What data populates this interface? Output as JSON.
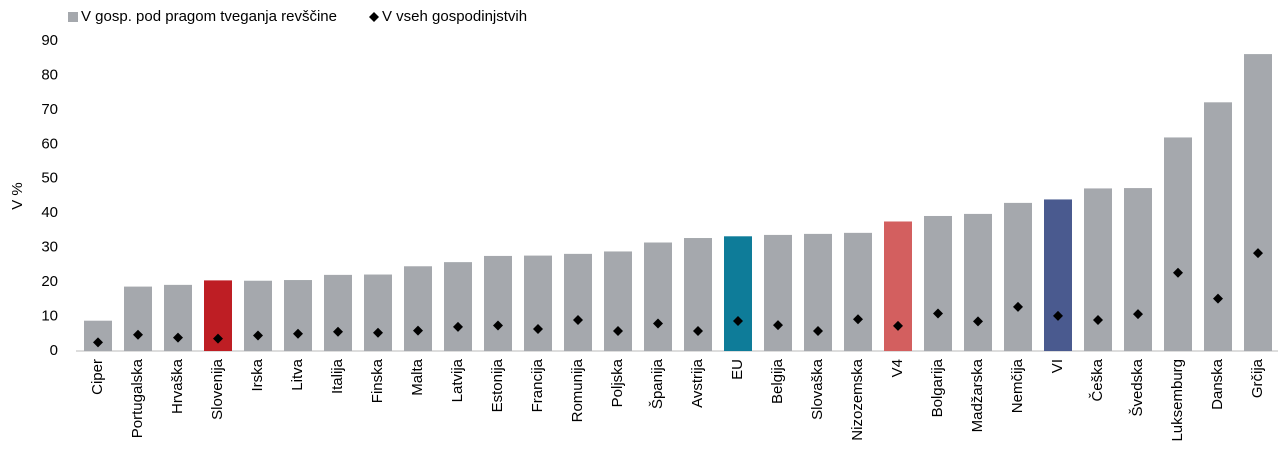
{
  "chart_data": {
    "type": "bar",
    "ylabel": "V %",
    "categories": [
      "Ciper",
      "Portugalska",
      "Hrvaška",
      "Slovenija",
      "Irska",
      "Litva",
      "Italija",
      "Finska",
      "Malta",
      "Latvija",
      "Estonija",
      "Francija",
      "Romunija",
      "Poljska",
      "Španija",
      "Avstrija",
      "EU",
      "Belgija",
      "Slovaška",
      "Nizozemska",
      "V4",
      "Bolgarija",
      "Madžarska",
      "Nemčija",
      "VI",
      "Češka",
      "Švedska",
      "Luksemburg",
      "Danska",
      "Grčija"
    ],
    "series": [
      {
        "name": "V gosp. pod pragom tveganja revščine",
        "color": "#a5a8ad",
        "colors": [
          "#a5a8ad",
          "#a5a8ad",
          "#a5a8ad",
          "#be1e24",
          "#a5a8ad",
          "#a5a8ad",
          "#a5a8ad",
          "#a5a8ad",
          "#a5a8ad",
          "#a5a8ad",
          "#a5a8ad",
          "#a5a8ad",
          "#a5a8ad",
          "#a5a8ad",
          "#a5a8ad",
          "#a5a8ad",
          "#0e7c99",
          "#a5a8ad",
          "#a5a8ad",
          "#a5a8ad",
          "#d35f5f",
          "#a5a8ad",
          "#a5a8ad",
          "#a5a8ad",
          "#4a5a8f",
          "#a5a8ad",
          "#a5a8ad",
          "#a5a8ad",
          "#a5a8ad",
          "#a5a8ad"
        ],
        "values": [
          8.8,
          18.7,
          19.2,
          20.5,
          20.4,
          20.6,
          22.1,
          22.2,
          24.6,
          25.8,
          27.6,
          27.7,
          28.2,
          28.9,
          31.5,
          32.8,
          33.3,
          33.7,
          34.0,
          34.3,
          37.6,
          39.2,
          39.8,
          43.0,
          44.0,
          47.2,
          47.3,
          62.0,
          72.2,
          86.2
        ]
      },
      {
        "name": "V vseh gospodinjstvih",
        "color": "#000000",
        "marker": "diamond",
        "values": [
          2.5,
          4.7,
          3.9,
          3.6,
          4.5,
          5.0,
          5.6,
          5.3,
          5.9,
          7.0,
          7.4,
          6.4,
          9.0,
          5.8,
          8.0,
          5.8,
          8.7,
          7.5,
          5.8,
          9.2,
          7.3,
          10.9,
          8.6,
          12.8,
          10.2,
          9.0,
          10.7,
          22.7,
          15.2,
          28.4
        ]
      }
    ],
    "ylim": [
      0,
      90
    ],
    "yticks": [
      0,
      10,
      20,
      30,
      40,
      50,
      60,
      70,
      80,
      90
    ],
    "grid": false,
    "legend": "top-left"
  }
}
